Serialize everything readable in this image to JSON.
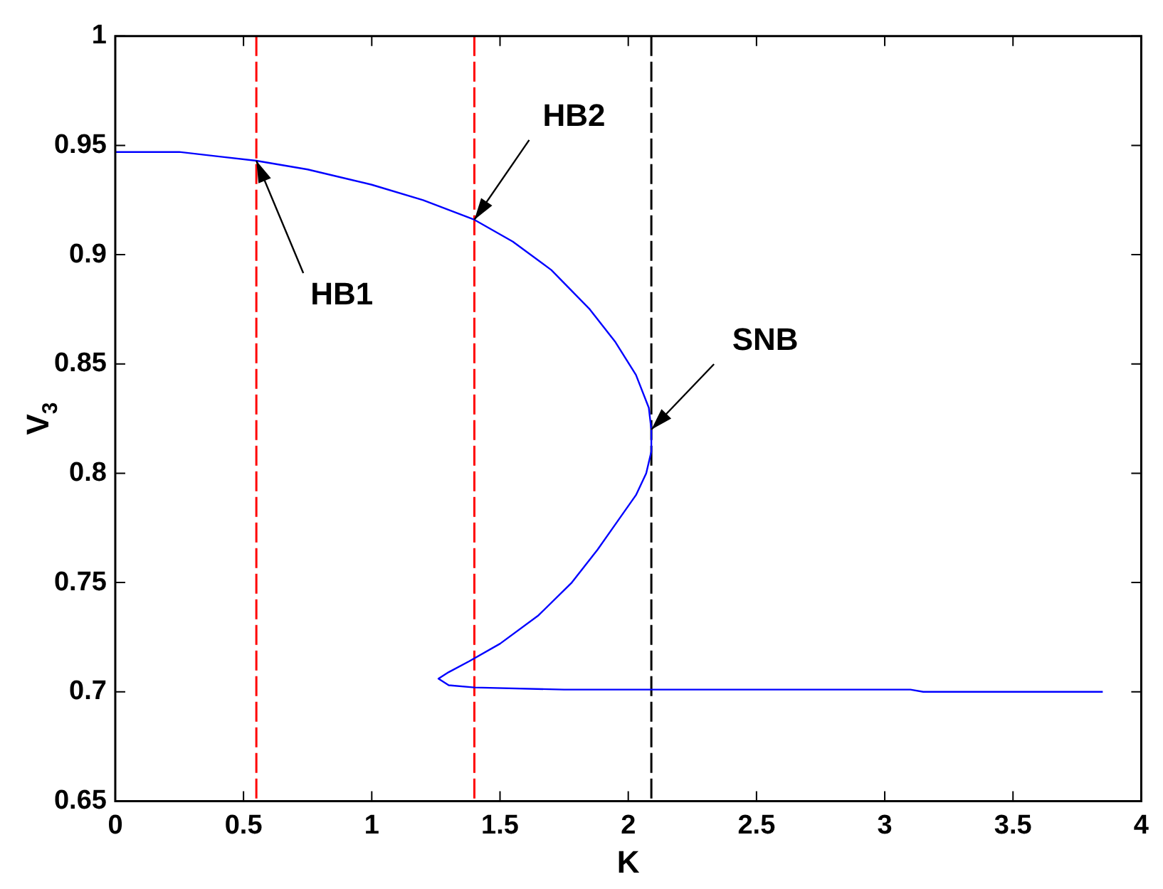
{
  "chart_data": {
    "type": "line",
    "xlabel": "K",
    "ylabel": "V$_{3}$",
    "xlim": [
      0,
      4
    ],
    "xticks": [
      0,
      0.5,
      1,
      1.5,
      2,
      2.5,
      3,
      3.5,
      4
    ],
    "ylim": [
      0.65,
      1
    ],
    "yticks": [
      0.65,
      0.7,
      0.75,
      0.8,
      0.85,
      0.9,
      0.95,
      1
    ],
    "grid": false,
    "legend": false,
    "marker": "none",
    "line_style": "solid",
    "series": [
      {
        "color": "#0000ff",
        "x": [
          0,
          0.25,
          0.4,
          0.55,
          0.75,
          1.0,
          1.2,
          1.4,
          1.55,
          1.7,
          1.85,
          1.95,
          2.03,
          2.08,
          2.09,
          2.09,
          2.07,
          2.03,
          1.97,
          1.88,
          1.78,
          1.65,
          1.5,
          1.38,
          1.3,
          1.26,
          1.3,
          1.4,
          1.75,
          3.1,
          3.15,
          3.85
        ],
        "values": [
          0.947,
          0.947,
          0.945,
          0.943,
          0.939,
          0.932,
          0.925,
          0.916,
          0.906,
          0.893,
          0.875,
          0.86,
          0.845,
          0.83,
          0.82,
          0.81,
          0.8,
          0.79,
          0.78,
          0.765,
          0.75,
          0.735,
          0.722,
          0.714,
          0.709,
          0.706,
          0.703,
          0.702,
          0.701,
          0.701,
          0.7,
          0.7
        ]
      }
    ],
    "ref_lines": [
      {
        "axis": "x",
        "value": 0.55,
        "color": "#ff0000",
        "line_style": "dashed"
      },
      {
        "axis": "x",
        "value": 1.4,
        "color": "#ff0000",
        "line_style": "dashed"
      },
      {
        "axis": "x",
        "value": 2.09,
        "color": "#000000",
        "line_style": "dashed"
      }
    ],
    "annotations": [
      {
        "text": "HB1",
        "x": 0.55,
        "y": 0.943
      },
      {
        "text": "HB2",
        "x": 1.4,
        "y": 0.916
      },
      {
        "text": "SNB",
        "x": 2.09,
        "y": 0.82
      }
    ]
  }
}
